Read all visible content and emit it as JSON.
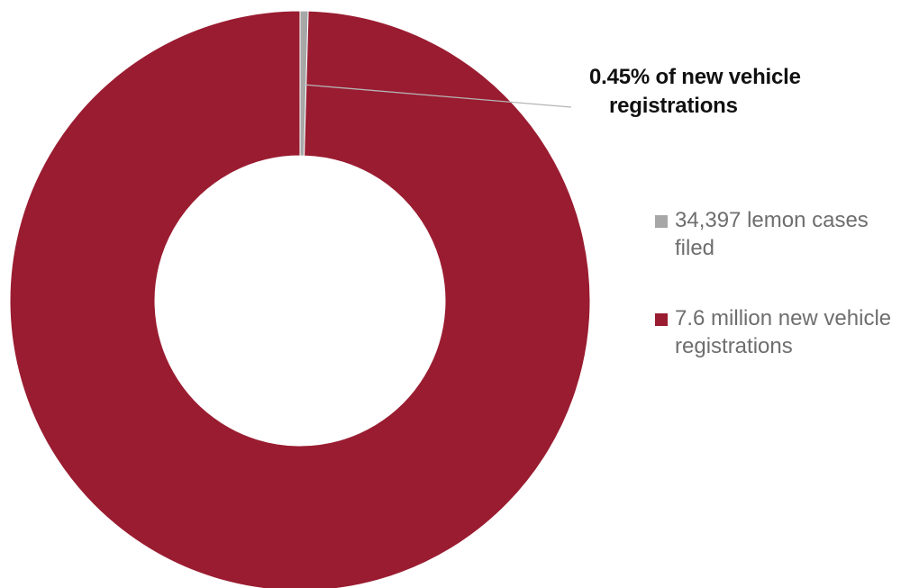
{
  "chart_data": {
    "type": "pie",
    "subtype": "donut",
    "series": [
      {
        "name": "34,397 lemon cases filed",
        "value": 34397,
        "color": "#a7a7a7"
      },
      {
        "name": "7.6 million new vehicle registrations",
        "value": 7600000,
        "color": "#9a1c31"
      }
    ],
    "annotation": "0.45% of new vehicle registrations",
    "annotation_line1": "0.45% of new vehicle",
    "annotation_line2": "registrations",
    "legend_placement": "right",
    "legend": [
      {
        "label": "34,397 lemon cases filed",
        "line1": "34,397 lemon cases",
        "line2": "filed",
        "color": "#a7a7a7"
      },
      {
        "label": "7.6 million new vehicle registrations",
        "line1": "7.6 million new vehicle",
        "line2": "registrations",
        "color": "#9a1c31"
      }
    ]
  }
}
